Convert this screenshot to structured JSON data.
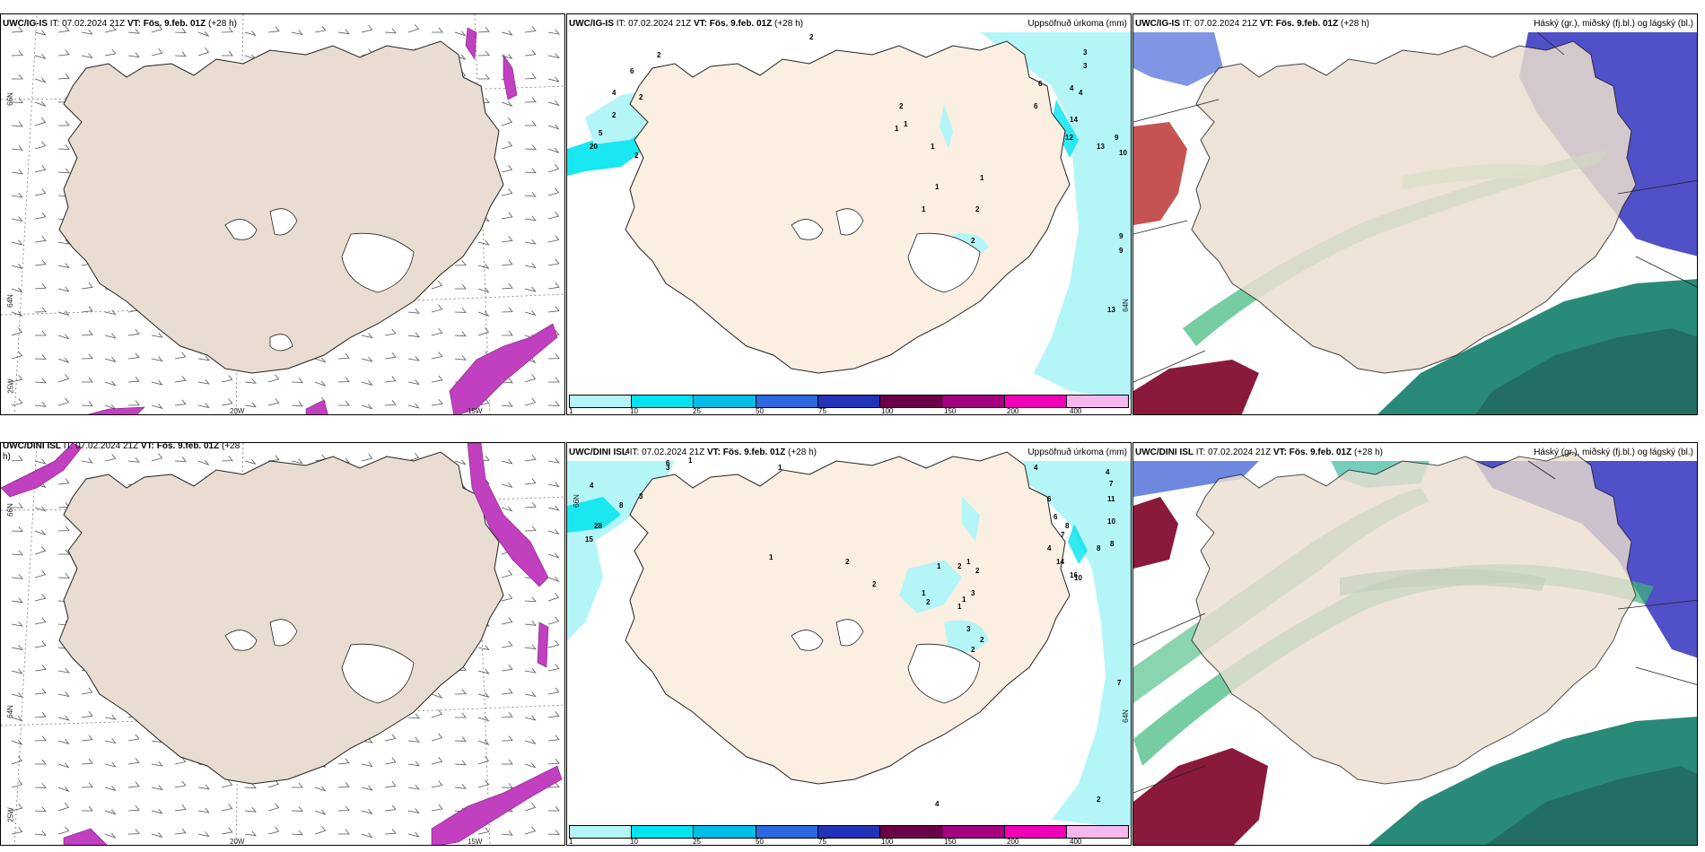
{
  "panels": {
    "p1": {
      "model": "UWC/IG-IS",
      "it": "IT: 07.02.2024 21Z",
      "vt": "VT: Fös. 9.feb. 01Z",
      "lead": "(+28 h)",
      "right": ""
    },
    "p2": {
      "model": "UWC/IG-IS",
      "it": "IT: 07.02.2024 21Z",
      "vt": "VT: Fös. 9.feb. 01Z",
      "lead": "(+28 h)",
      "right": "Uppsöfnuð úrkoma (mm)"
    },
    "p3": {
      "model": "UWC/IG-IS",
      "it": "IT: 07.02.2024 21Z",
      "vt": "VT: Fös. 9.feb. 01Z",
      "lead": "(+28 h)",
      "right": "Háský (gr.), miðský (fj.bl.) og lágský (bl.)"
    },
    "p4": {
      "model": "UWC/DINI ISL",
      "it": "IT: 07.02.2024 21Z",
      "vt": "VT: Fös. 9.feb. 01Z",
      "lead": "(+28",
      "lead2": "h)",
      "right": ""
    },
    "p5": {
      "model": "UWC/DINI ISL",
      "it": "IT: 07.02.2024 21Z",
      "vt": "VT: Fös. 9.feb. 01Z",
      "lead": "(+28 h)",
      "right": "Uppsöfnuð úrkoma (mm)"
    },
    "p6": {
      "model": "UWC/DINI ISL",
      "it": "IT: 07.02.2024 21Z",
      "vt": "VT: Fös. 9.feb. 01Z",
      "lead": "(+28 h)",
      "right": "Háský (gr.), miðský (fj.bl.) og lágský (bl.)"
    }
  },
  "axis_labels": {
    "lat66": "66N",
    "lat64": "64N",
    "lon20": "20W",
    "lon15": "15W",
    "lon25": "25W",
    "lat65": "65N"
  },
  "precip_legend": {
    "labels": [
      "1",
      "10",
      "25",
      "50",
      "75",
      "100",
      "150",
      "200",
      "400"
    ],
    "colors": [
      "#b4f5f8",
      "#00e4ef",
      "#00bde8",
      "#2c68e0",
      "#2233b8",
      "#6b0049",
      "#a4007e",
      "#f000b8",
      "#f5b8ee"
    ]
  },
  "precip_values_top": [
    "2",
    "2",
    "6",
    "4",
    "2",
    "5",
    "20",
    "2",
    "2",
    "1",
    "1",
    "1",
    "2",
    "1",
    "1",
    "2",
    "2",
    "1",
    "6",
    "4",
    "6",
    "3",
    "3",
    "4",
    "14",
    "12",
    "13",
    "9",
    "10",
    "9",
    "9",
    "13"
  ],
  "precip_values_bottom": [
    "4",
    "6",
    "1",
    "1",
    "4",
    "8",
    "3",
    "28",
    "15",
    "3",
    "1",
    "2",
    "1",
    "2",
    "1",
    "2",
    "1",
    "2",
    "2",
    "3",
    "1",
    "1",
    "3",
    "2",
    "2",
    "4",
    "6",
    "6",
    "8",
    "7",
    "4",
    "14",
    "16",
    "10",
    "8",
    "4",
    "7",
    "11",
    "10",
    "8",
    "7",
    "2",
    "4"
  ],
  "colors": {
    "land": "#eadfcf",
    "land_precip": "#fbefe2",
    "coast": "#222222",
    "wind": "#555555"
  }
}
